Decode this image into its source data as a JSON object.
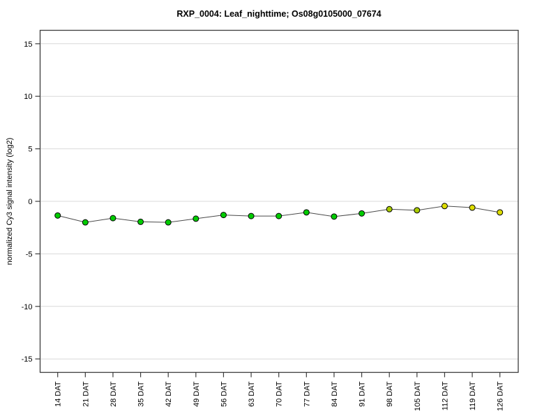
{
  "title": "RXP_0004: Leaf_nighttime; Os08g0105000_07674",
  "chart_data": {
    "type": "line",
    "title": "RXP_0004: Leaf_nighttime; Os08g0105000_07674",
    "xlabel": "",
    "ylabel": "normalized Cy3 signal intensity (log2)",
    "categories": [
      "14 DAT",
      "21 DAT",
      "28 DAT",
      "35 DAT",
      "42 DAT",
      "49 DAT",
      "56 DAT",
      "63 DAT",
      "70 DAT",
      "77 DAT",
      "84 DAT",
      "91 DAT",
      "98 DAT",
      "105 DAT",
      "112 DAT",
      "119 DAT",
      "126 DAT"
    ],
    "series": [
      {
        "name": "normalized Cy3 signal intensity (log2)",
        "values": [
          -1.35,
          -2.0,
          -1.6,
          -1.95,
          -2.0,
          -1.65,
          -1.3,
          -1.4,
          -1.4,
          -1.05,
          -1.45,
          -1.15,
          -0.75,
          -0.85,
          -0.45,
          -0.6,
          -1.05
        ],
        "point_colors": [
          "#00CC00",
          "#00CC00",
          "#00CC00",
          "#00CC00",
          "#00CC00",
          "#00CC00",
          "#00CC00",
          "#00CC00",
          "#00CC00",
          "#00CC00",
          "#00CC00",
          "#00CC00",
          "#AACC00",
          "#AACC00",
          "#DDDD00",
          "#DDDD00",
          "#DDDD00"
        ]
      }
    ],
    "yticks": [
      15,
      10,
      5,
      0,
      -5,
      -10,
      -15
    ],
    "ylim": [
      -16.3,
      16.3
    ],
    "grid": true,
    "legend": "none",
    "style": {
      "line_color": "#4a4a4a",
      "marker_border_color": "#000000",
      "grid_color": "#d9d9d9",
      "frame_color": "#3c3c3c",
      "tick_label_color": "#000000",
      "background": "#ffffff"
    }
  }
}
